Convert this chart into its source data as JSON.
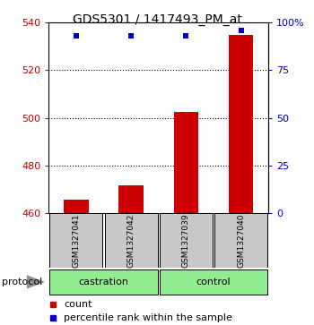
{
  "title": "GDS5301 / 1417493_PM_at",
  "samples": [
    "GSM1327041",
    "GSM1327042",
    "GSM1327039",
    "GSM1327040"
  ],
  "groups": [
    "castration",
    "castration",
    "control",
    "control"
  ],
  "group_labels": [
    "castration",
    "control"
  ],
  "counts": [
    465.5,
    471.5,
    502.5,
    535.0
  ],
  "percentile_ranks": [
    93,
    93,
    93,
    96
  ],
  "ylim_left": [
    460,
    540
  ],
  "ylim_right": [
    0,
    100
  ],
  "yticks_left": [
    460,
    480,
    500,
    520,
    540
  ],
  "yticks_right": [
    0,
    25,
    50,
    75,
    100
  ],
  "yticklabels_right": [
    "0",
    "25",
    "50",
    "75",
    "100%"
  ],
  "left_tick_color": "#cc0000",
  "right_tick_color": "#0000cc",
  "bar_color": "#cc0000",
  "dot_color": "#0000cc",
  "grid_color": "#000000",
  "box_color": "#c8c8c8",
  "green_color": "#90EE90",
  "label_text_count": "count",
  "label_text_percentile": "percentile rank within the sample",
  "protocol_label": "protocol",
  "arrow_color": "#909090",
  "title_fontsize": 10,
  "tick_fontsize": 8,
  "sample_fontsize": 6.5,
  "group_fontsize": 8,
  "legend_fontsize": 8
}
